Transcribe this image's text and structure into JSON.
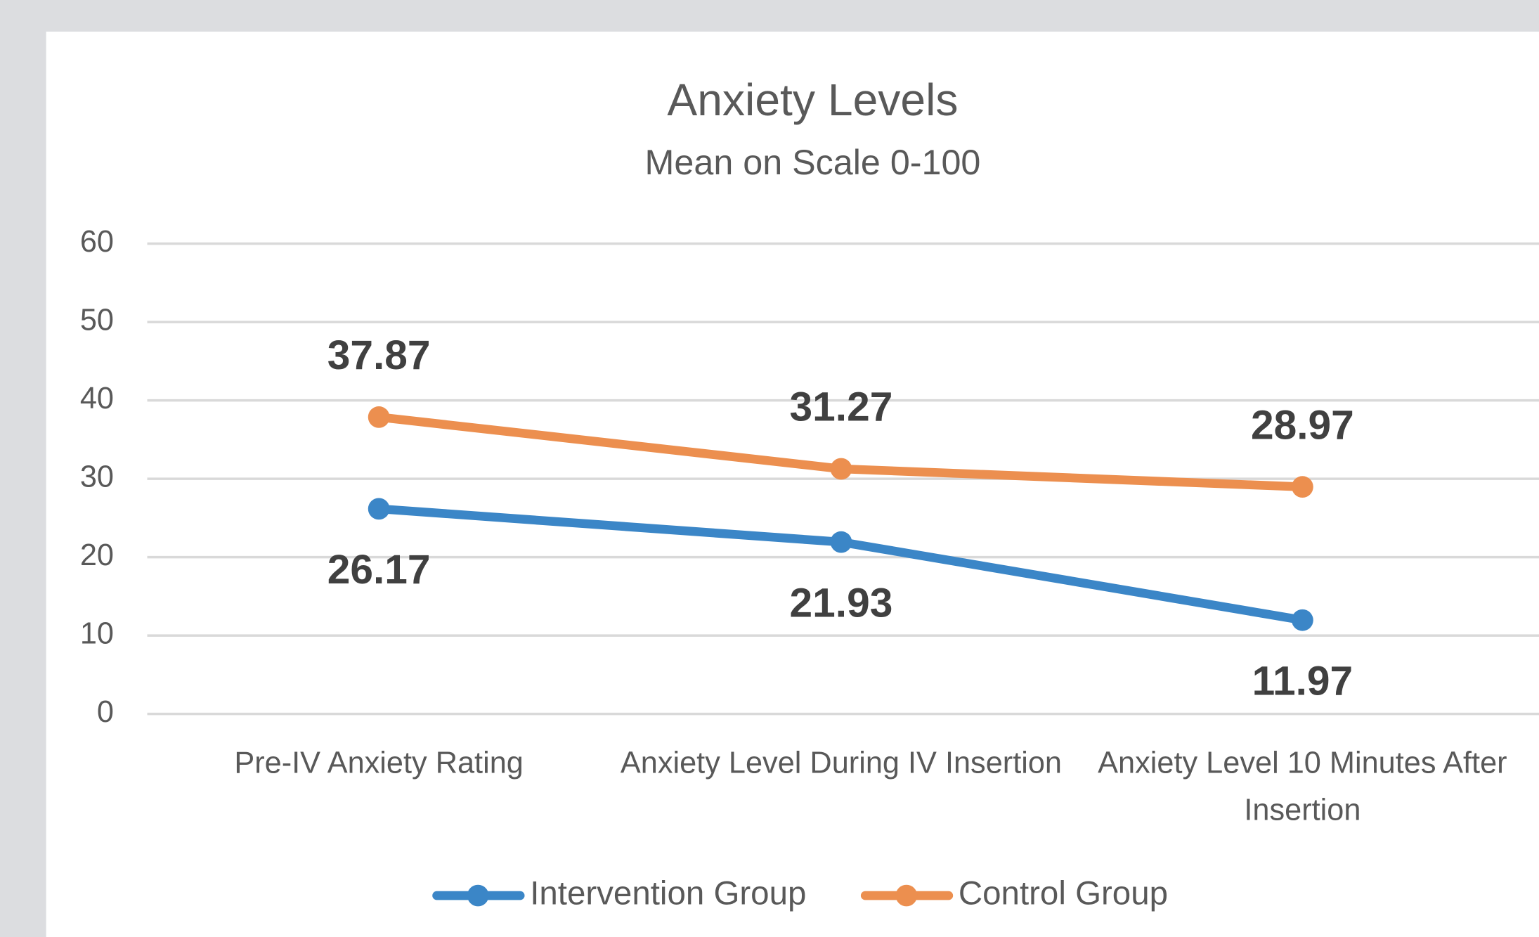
{
  "chart_data": {
    "type": "line",
    "title": "Anxiety Levels",
    "subtitle": "Mean on Scale 0-100",
    "categories": [
      "Pre-IV Anxiety Rating",
      "Anxiety Level During IV Insertion",
      "Anxiety Level 10 Minutes After Insertion"
    ],
    "series": [
      {
        "name": "Intervention Group",
        "color": "#3b86c7",
        "values": [
          26.17,
          21.93,
          11.97
        ]
      },
      {
        "name": "Control Group",
        "color": "#ec8f4f",
        "values": [
          37.87,
          31.27,
          28.97
        ]
      }
    ],
    "ylim": [
      0,
      60
    ],
    "yticks": [
      0,
      10,
      20,
      30,
      40,
      50,
      60
    ],
    "grid": true,
    "legend": "bottom"
  }
}
